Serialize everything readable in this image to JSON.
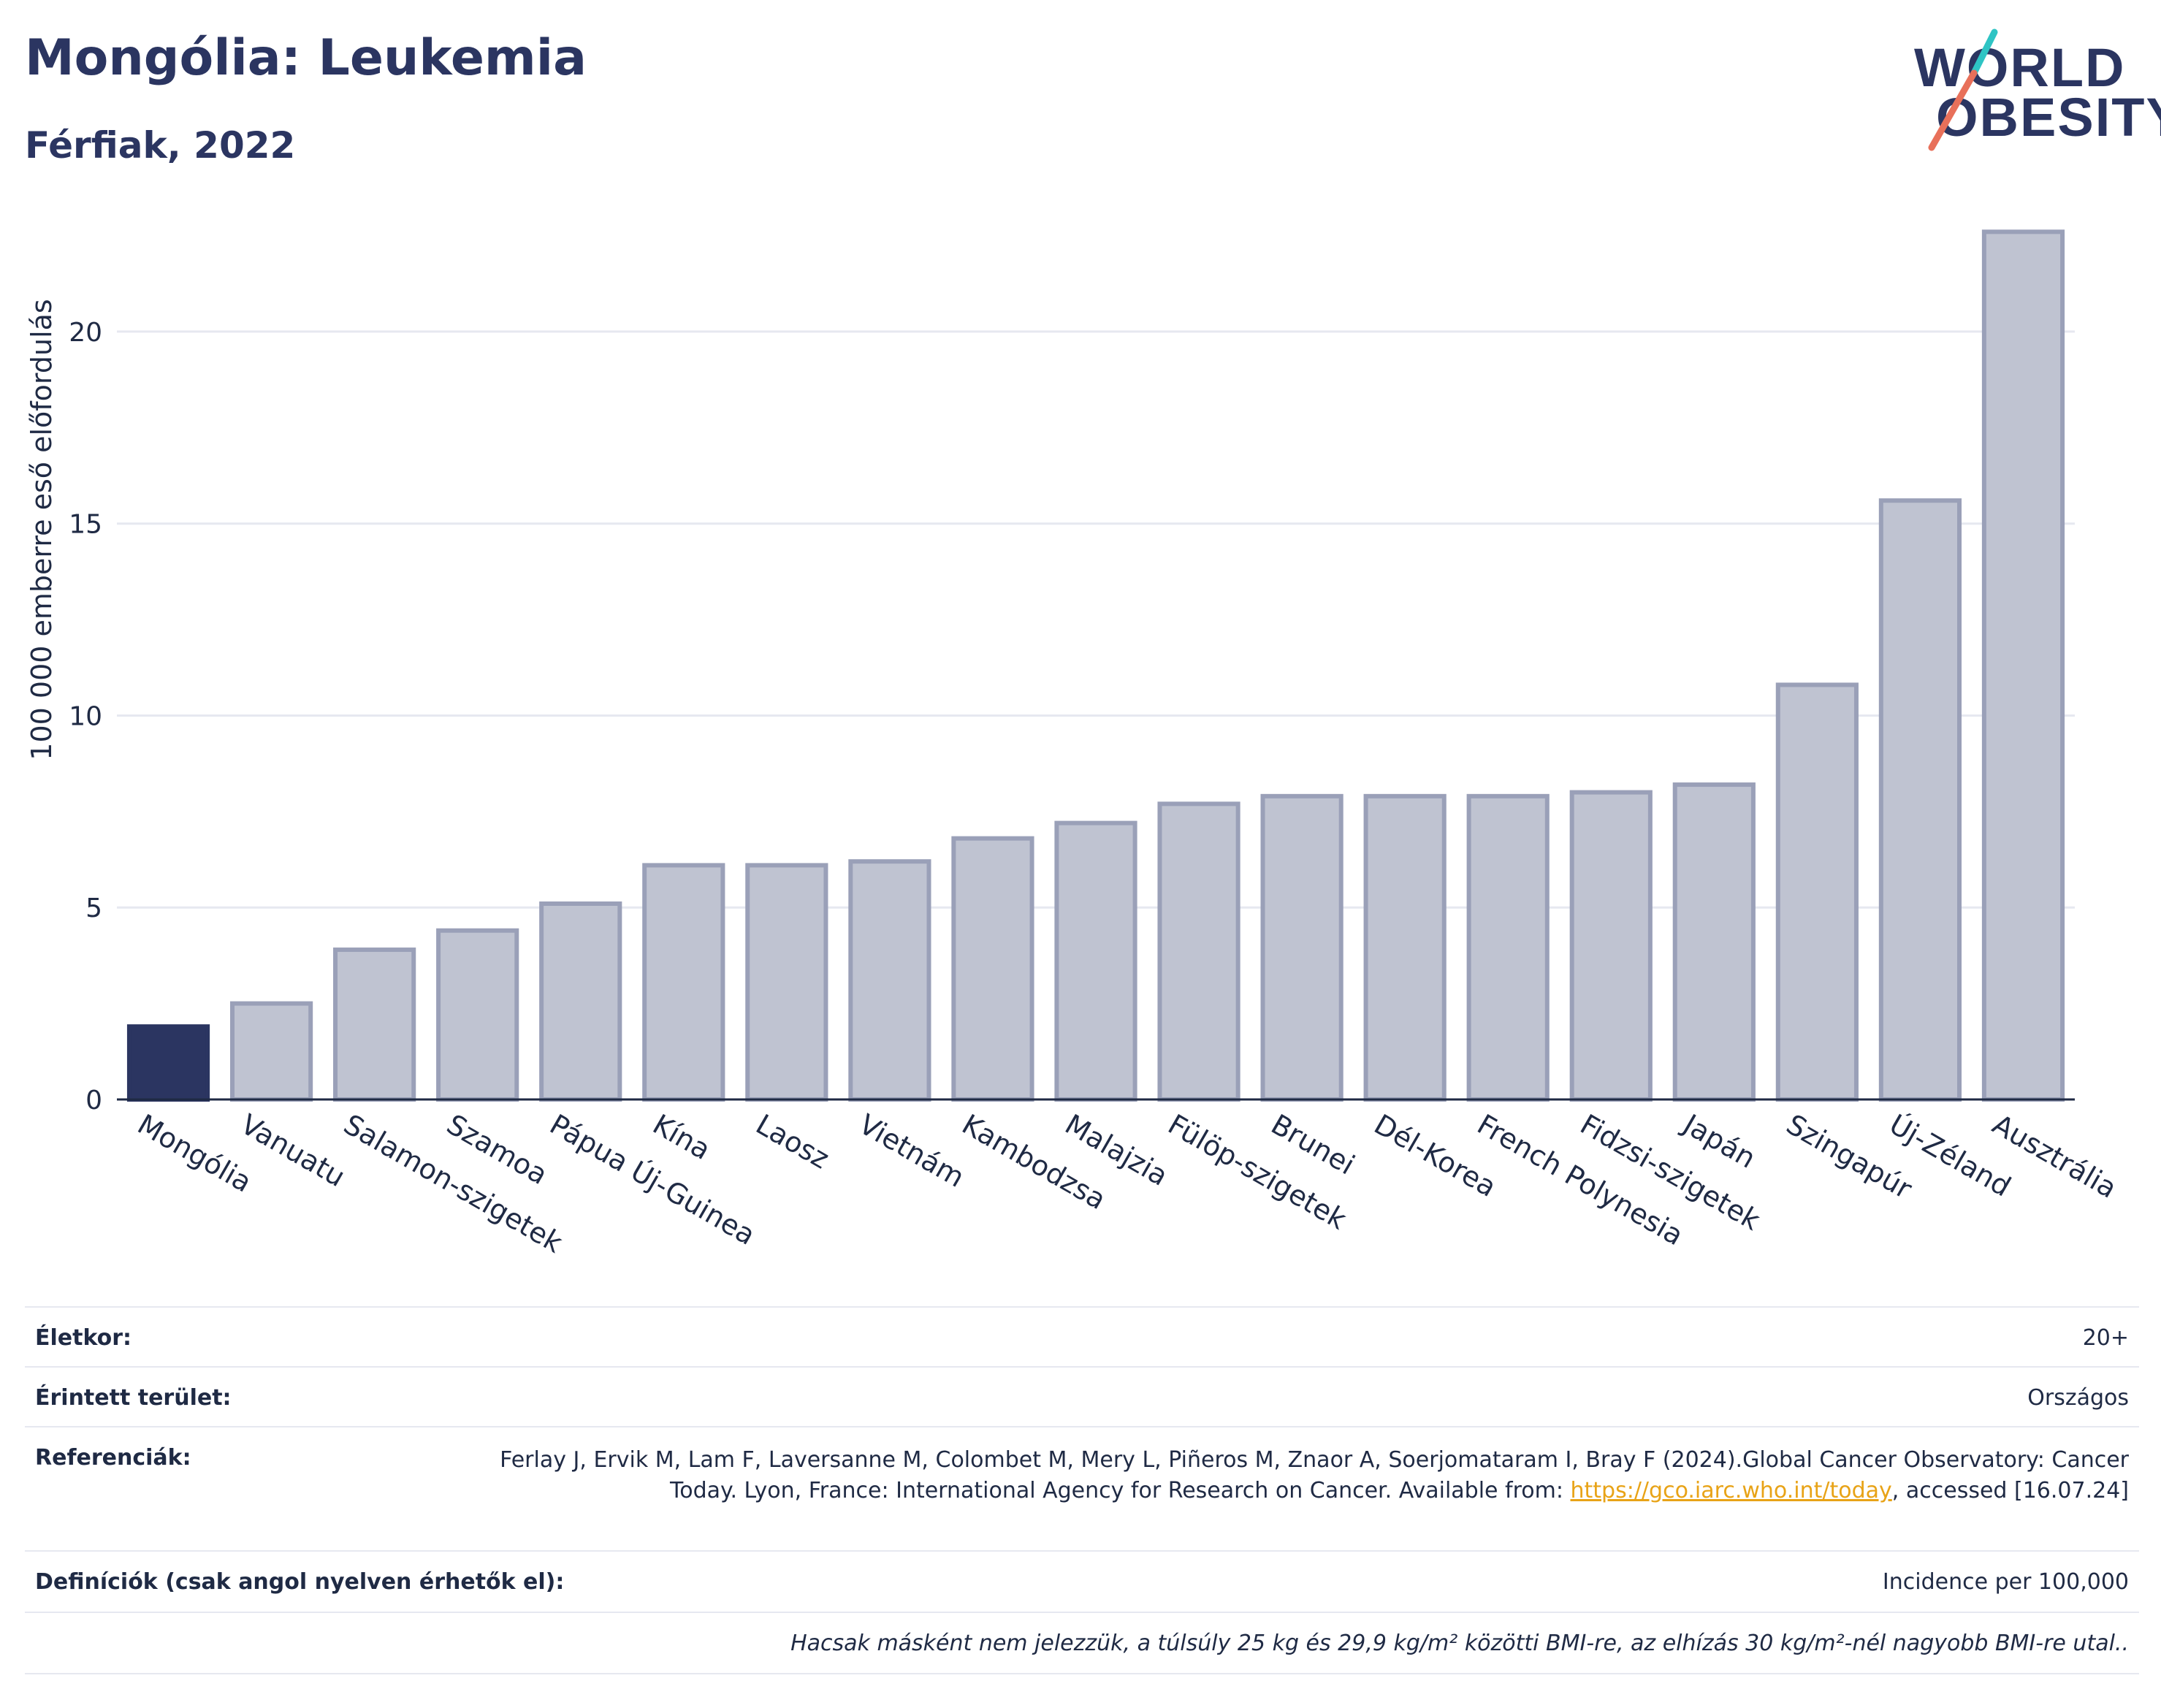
{
  "header": {
    "title": "Mongólia: Leukemia",
    "subtitle": "Férfiak, 2022"
  },
  "logo": {
    "line1": "WORLD",
    "line2": "OBESITY",
    "accent_teal": "#2ec4c4",
    "accent_red": "#e8705a"
  },
  "colors": {
    "highlight_bar": "#2b3561",
    "other_bar": "#bfc3d1",
    "bar_outline": "#9aa0b8",
    "axis": "#1f2a44",
    "grid": "#e6e8f0"
  },
  "chart_data": {
    "type": "bar",
    "ylabel": "100 000 emberre eső előfordulás",
    "ylim": [
      0,
      23.5
    ],
    "yticks": [
      0,
      5,
      10,
      15,
      20
    ],
    "grid": true,
    "highlight": "Mongólia",
    "categories": [
      "Mongólia",
      "Vanuatu",
      "Salamon-szigetek",
      "Szamoa",
      "Pápua Új-Guinea",
      "Kína",
      "Laosz",
      "Vietnám",
      "Kambodzsa",
      "Malajzia",
      "Fülöp-szigetek",
      "Brunei",
      "Dél-Korea",
      "French Polynesia",
      "Fidzsi-szigetek",
      "Japán",
      "Szingapúr",
      "Új-Zéland",
      "Ausztrália"
    ],
    "values": [
      1.9,
      2.5,
      3.9,
      4.4,
      5.1,
      6.1,
      6.1,
      6.2,
      6.8,
      7.2,
      7.7,
      7.9,
      7.9,
      7.9,
      8.0,
      8.2,
      10.8,
      15.6,
      22.6
    ]
  },
  "table": {
    "age_label": "Életkor:",
    "age_value": "20+",
    "area_label": "Érintett terület:",
    "area_value": "Országos",
    "ref_label": "Referenciák:",
    "ref_text_1": "Ferlay J, Ervik M, Lam F, Laversanne M, Colombet M, Mery L, Piñeros M, Znaor A, Soerjomataram I, Bray F (2024).Global Cancer Observatory: Cancer Today. Lyon, France: International Agency for Research on Cancer. Available from: ",
    "ref_link": "https://gco.iarc.who.int/today",
    "ref_text_2": ", accessed [16.07.24]",
    "def_label": "Definíciók (csak angol nyelven érhetők el):",
    "def_value": "Incidence per 100,000",
    "note": "Hacsak másként nem jelezzük, a túlsúly 25 kg és 29,9 kg/m² közötti BMI-re, az elhízás 30 kg/m²-nél nagyobb BMI-re utal.."
  }
}
